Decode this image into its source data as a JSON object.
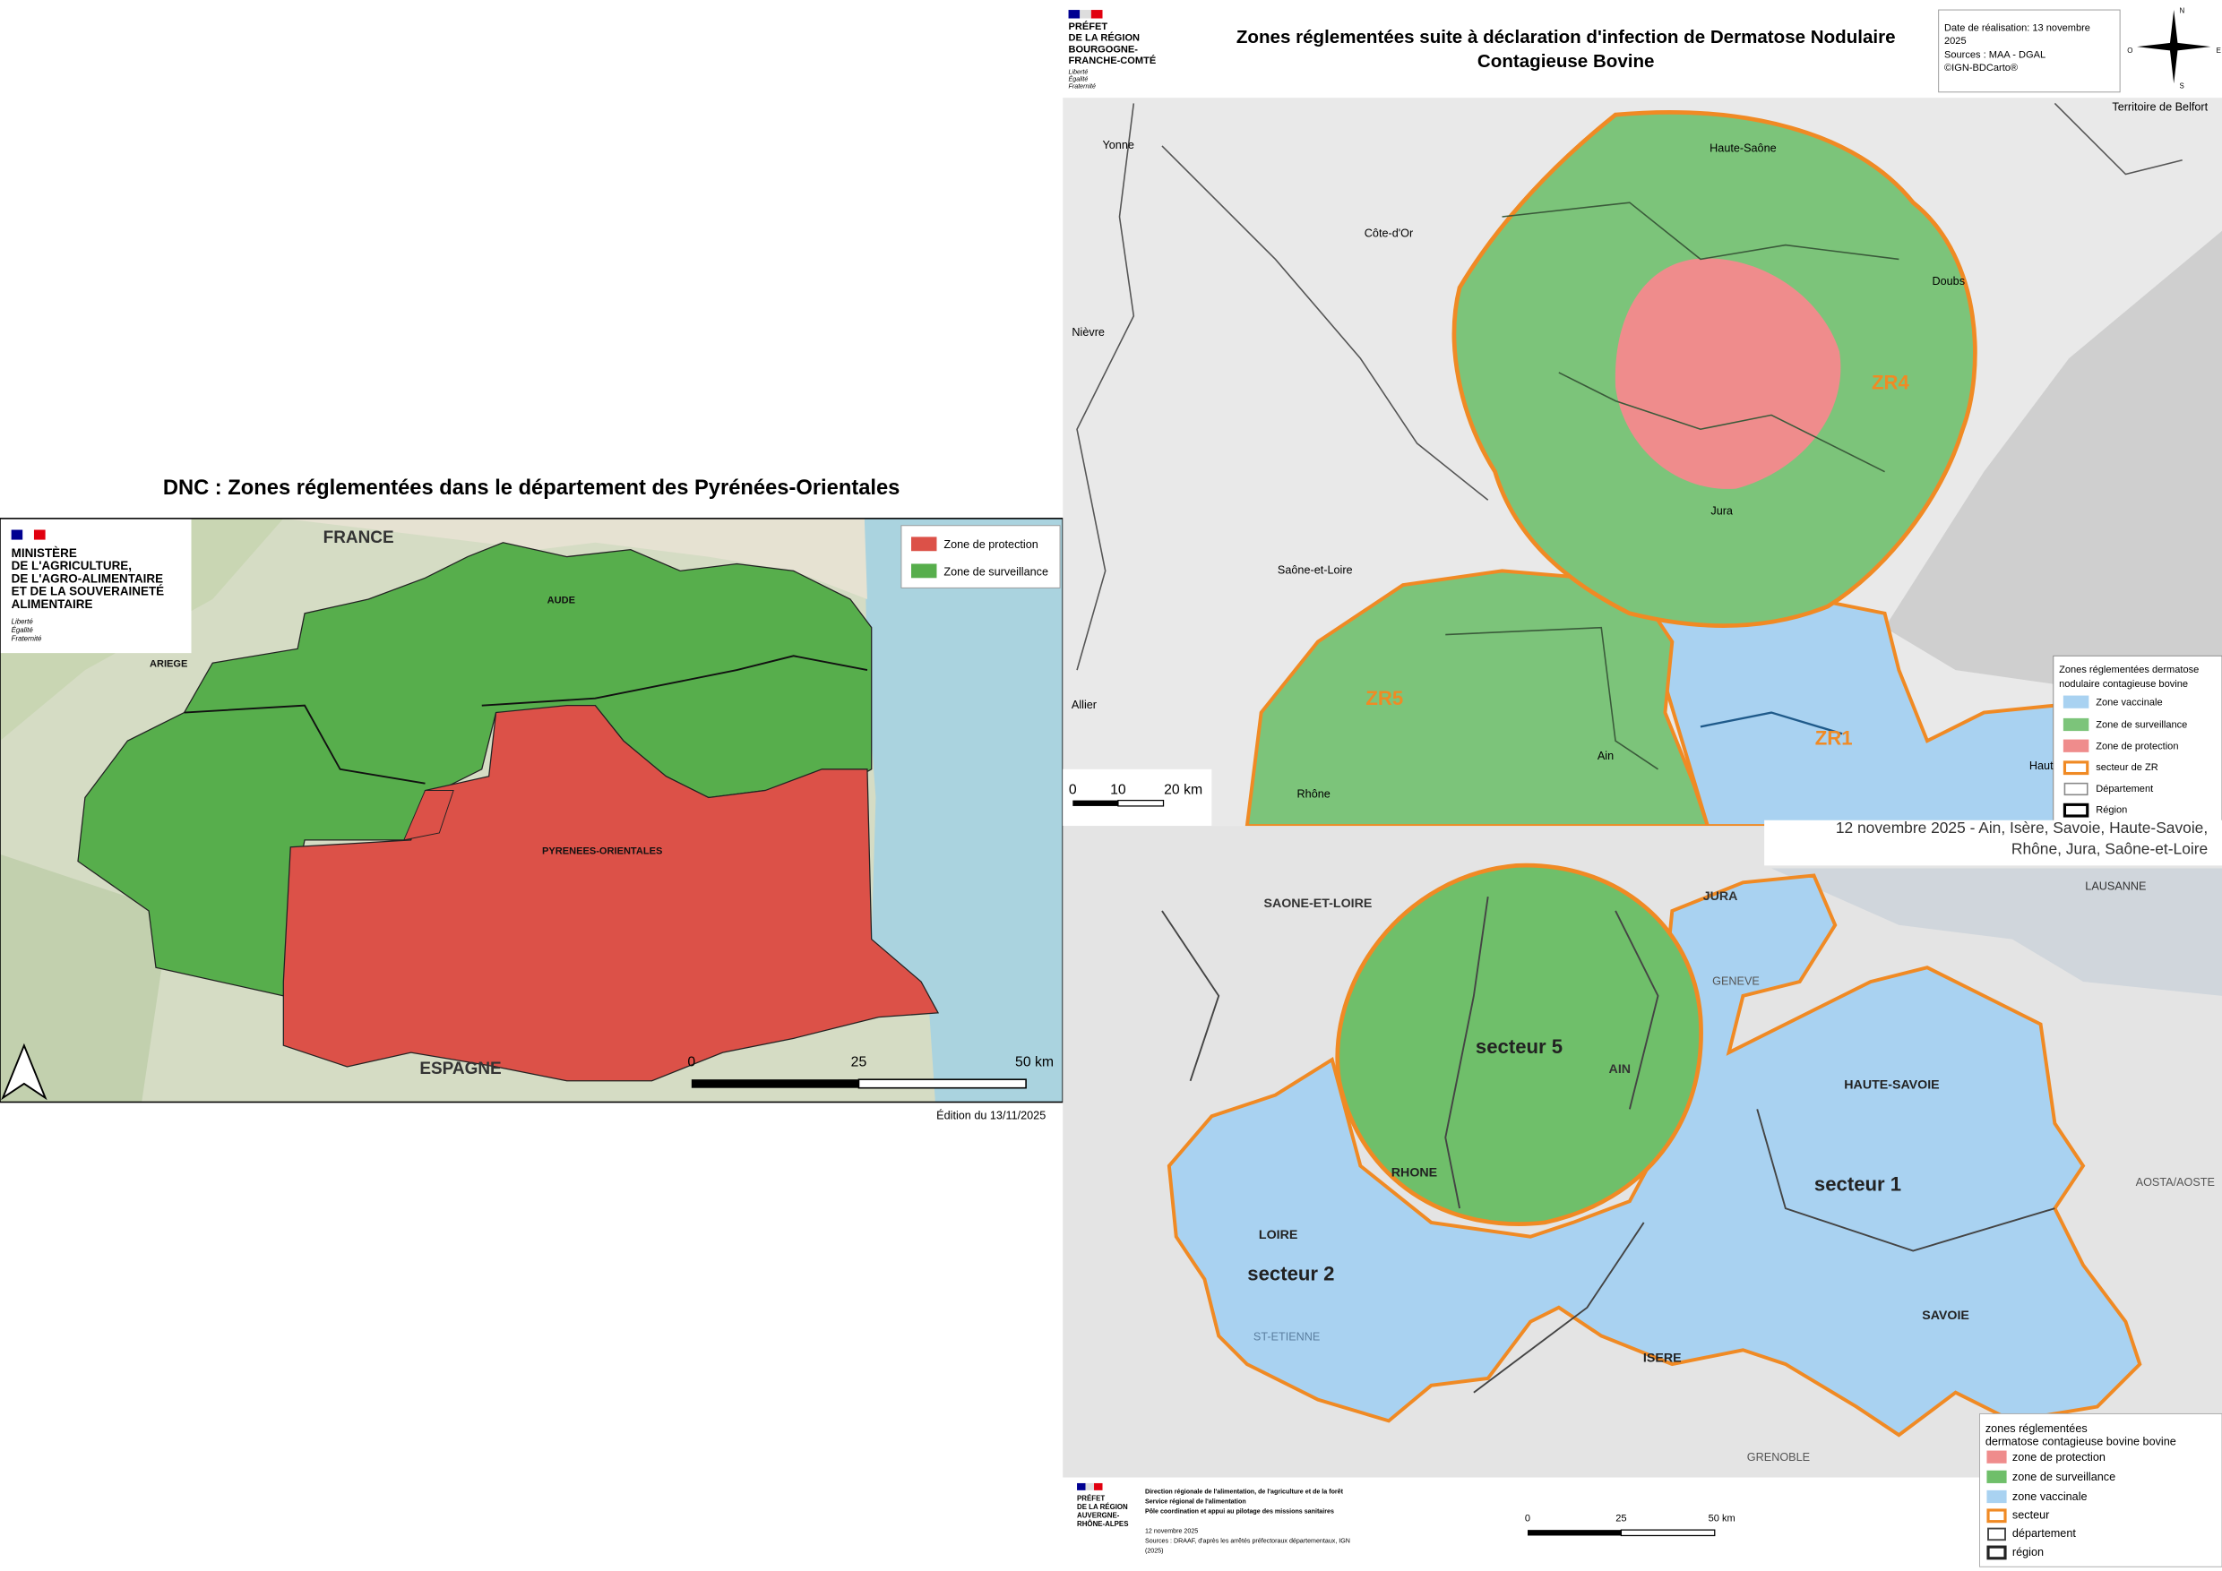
{
  "left_map": {
    "title": "DNC : Zones réglementées dans le département des Pyrénées-Orientales",
    "logo": [
      "MINISTÈRE",
      "DE L'AGRICULTURE,",
      "DE L'AGRO-ALIMENTAIRE",
      "ET DE LA SOUVERAINETÉ",
      "ALIMENTAIRE"
    ],
    "motto": [
      "Liberté",
      "Égalité",
      "Fraternité"
    ],
    "labels": [
      "FRANCE",
      "AUDE",
      "ARIEGE",
      "PYRENEES-ORIENTALES",
      "ESPAGNE"
    ],
    "legend": [
      "Zone de protection",
      "Zone de surveillance"
    ],
    "scale": [
      "0",
      "25",
      "50 km"
    ],
    "edition": "Édition du 13/11/2025"
  },
  "top_right_map": {
    "logo": [
      "PRÉFET",
      "DE LA RÉGION",
      "BOURGOGNE-",
      "FRANCHE-COMTÉ"
    ],
    "motto": [
      "Liberté",
      "Égalité",
      "Fraternité"
    ],
    "title": [
      "Zones réglementées suite à déclaration d'infection de Dermatose Nodulaire",
      "Contagieuse Bovine"
    ],
    "info": [
      "Date de réalisation: 13 novembre",
      "2025",
      "Sources : MAA - DGAL",
      "©IGN-BDCarto®"
    ],
    "compass": [
      "N",
      "S",
      "E",
      "O"
    ],
    "labels": [
      "Yonne",
      "Haute-Saône",
      "Territoire de Belfort",
      "Côte-d'Or",
      "Doubs",
      "Nièvre",
      "ZR4",
      "Jura",
      "Saône-et-Loire",
      "ZR5",
      "Allier",
      "Ain",
      "ZR1",
      "Rhône",
      "Haute"
    ],
    "scale": [
      "0",
      "10",
      "20 km"
    ],
    "legend_title": [
      "Zones réglementées dermatose",
      "nodulaire contagieuse bovine"
    ],
    "legend": [
      "Zone vaccinale",
      "Zone de surveillance",
      "Zone de protection",
      "secteur de ZR",
      "Département",
      "Région"
    ]
  },
  "bottom_right_map": {
    "header": [
      "12 novembre 2025 - Ain, Isère, Savoie, Haute-Savoie,",
      "Rhône, Jura, Saône-et-Loire"
    ],
    "labels": [
      "SAONE-ET-LOIRE",
      "JURA",
      "LAUSANNE",
      "secteur 5",
      "AIN",
      "HAUTE-SAVOIE",
      "RHONE",
      "LOIRE",
      "secteur 1",
      "AOSTA/AOSTE",
      "secteur 2",
      "SAVOIE",
      "ISERE",
      "ST-ETIENNE",
      "GRENOBLE",
      "GENEVE"
    ],
    "legend_title": [
      "zones réglementées",
      "dermatose contagieuse bovine bovine"
    ],
    "legend": [
      "zone de protection",
      "zone de surveillance",
      "zone vaccinale",
      "secteur",
      "département",
      "région"
    ],
    "logo": [
      "PRÉFET",
      "DE LA RÉGION",
      "AUVERGNE-",
      "RHÔNE-ALPES"
    ],
    "footer": [
      "Direction régionale de l'alimentation, de l'agriculture et de la forêt",
      "Service régional de l'alimentation",
      "Pôle coordination et appui au pilotage des missions sanitaires",
      "12 novembre 2025",
      "Sources : DRAAF, d'après les arrêtés préfectoraux départementaux, IGN",
      "(2025)"
    ],
    "scale": [
      "0",
      "25",
      "50 km"
    ]
  }
}
